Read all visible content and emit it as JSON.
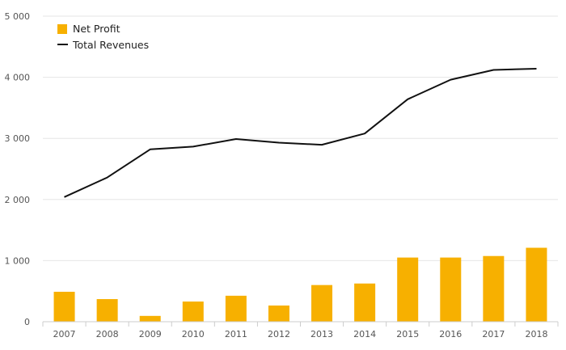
{
  "chart_data": {
    "type": "bar",
    "categories": [
      "2007",
      "2008",
      "2009",
      "2010",
      "2011",
      "2012",
      "2013",
      "2014",
      "2015",
      "2016",
      "2017",
      "2018"
    ],
    "series": [
      {
        "name": "Net Profit",
        "type": "bar",
        "color": "#F7B000",
        "values": [
          490,
          370,
          95,
          330,
          425,
          265,
          600,
          625,
          1050,
          1050,
          1075,
          1210
        ]
      },
      {
        "name": "Total Revenues",
        "type": "line",
        "color": "#111111",
        "values": [
          2040,
          2360,
          2820,
          2865,
          2990,
          2930,
          2895,
          3080,
          3640,
          3960,
          4120,
          4140
        ]
      }
    ],
    "yticks": [
      0,
      1000,
      2000,
      3000,
      4000,
      5000
    ],
    "ytick_labels": [
      "0",
      "1 000",
      "2 000",
      "3 000",
      "4 000",
      "5 000"
    ],
    "ylim": [
      0,
      5000
    ],
    "grid": true,
    "legend_position": "top-left"
  }
}
